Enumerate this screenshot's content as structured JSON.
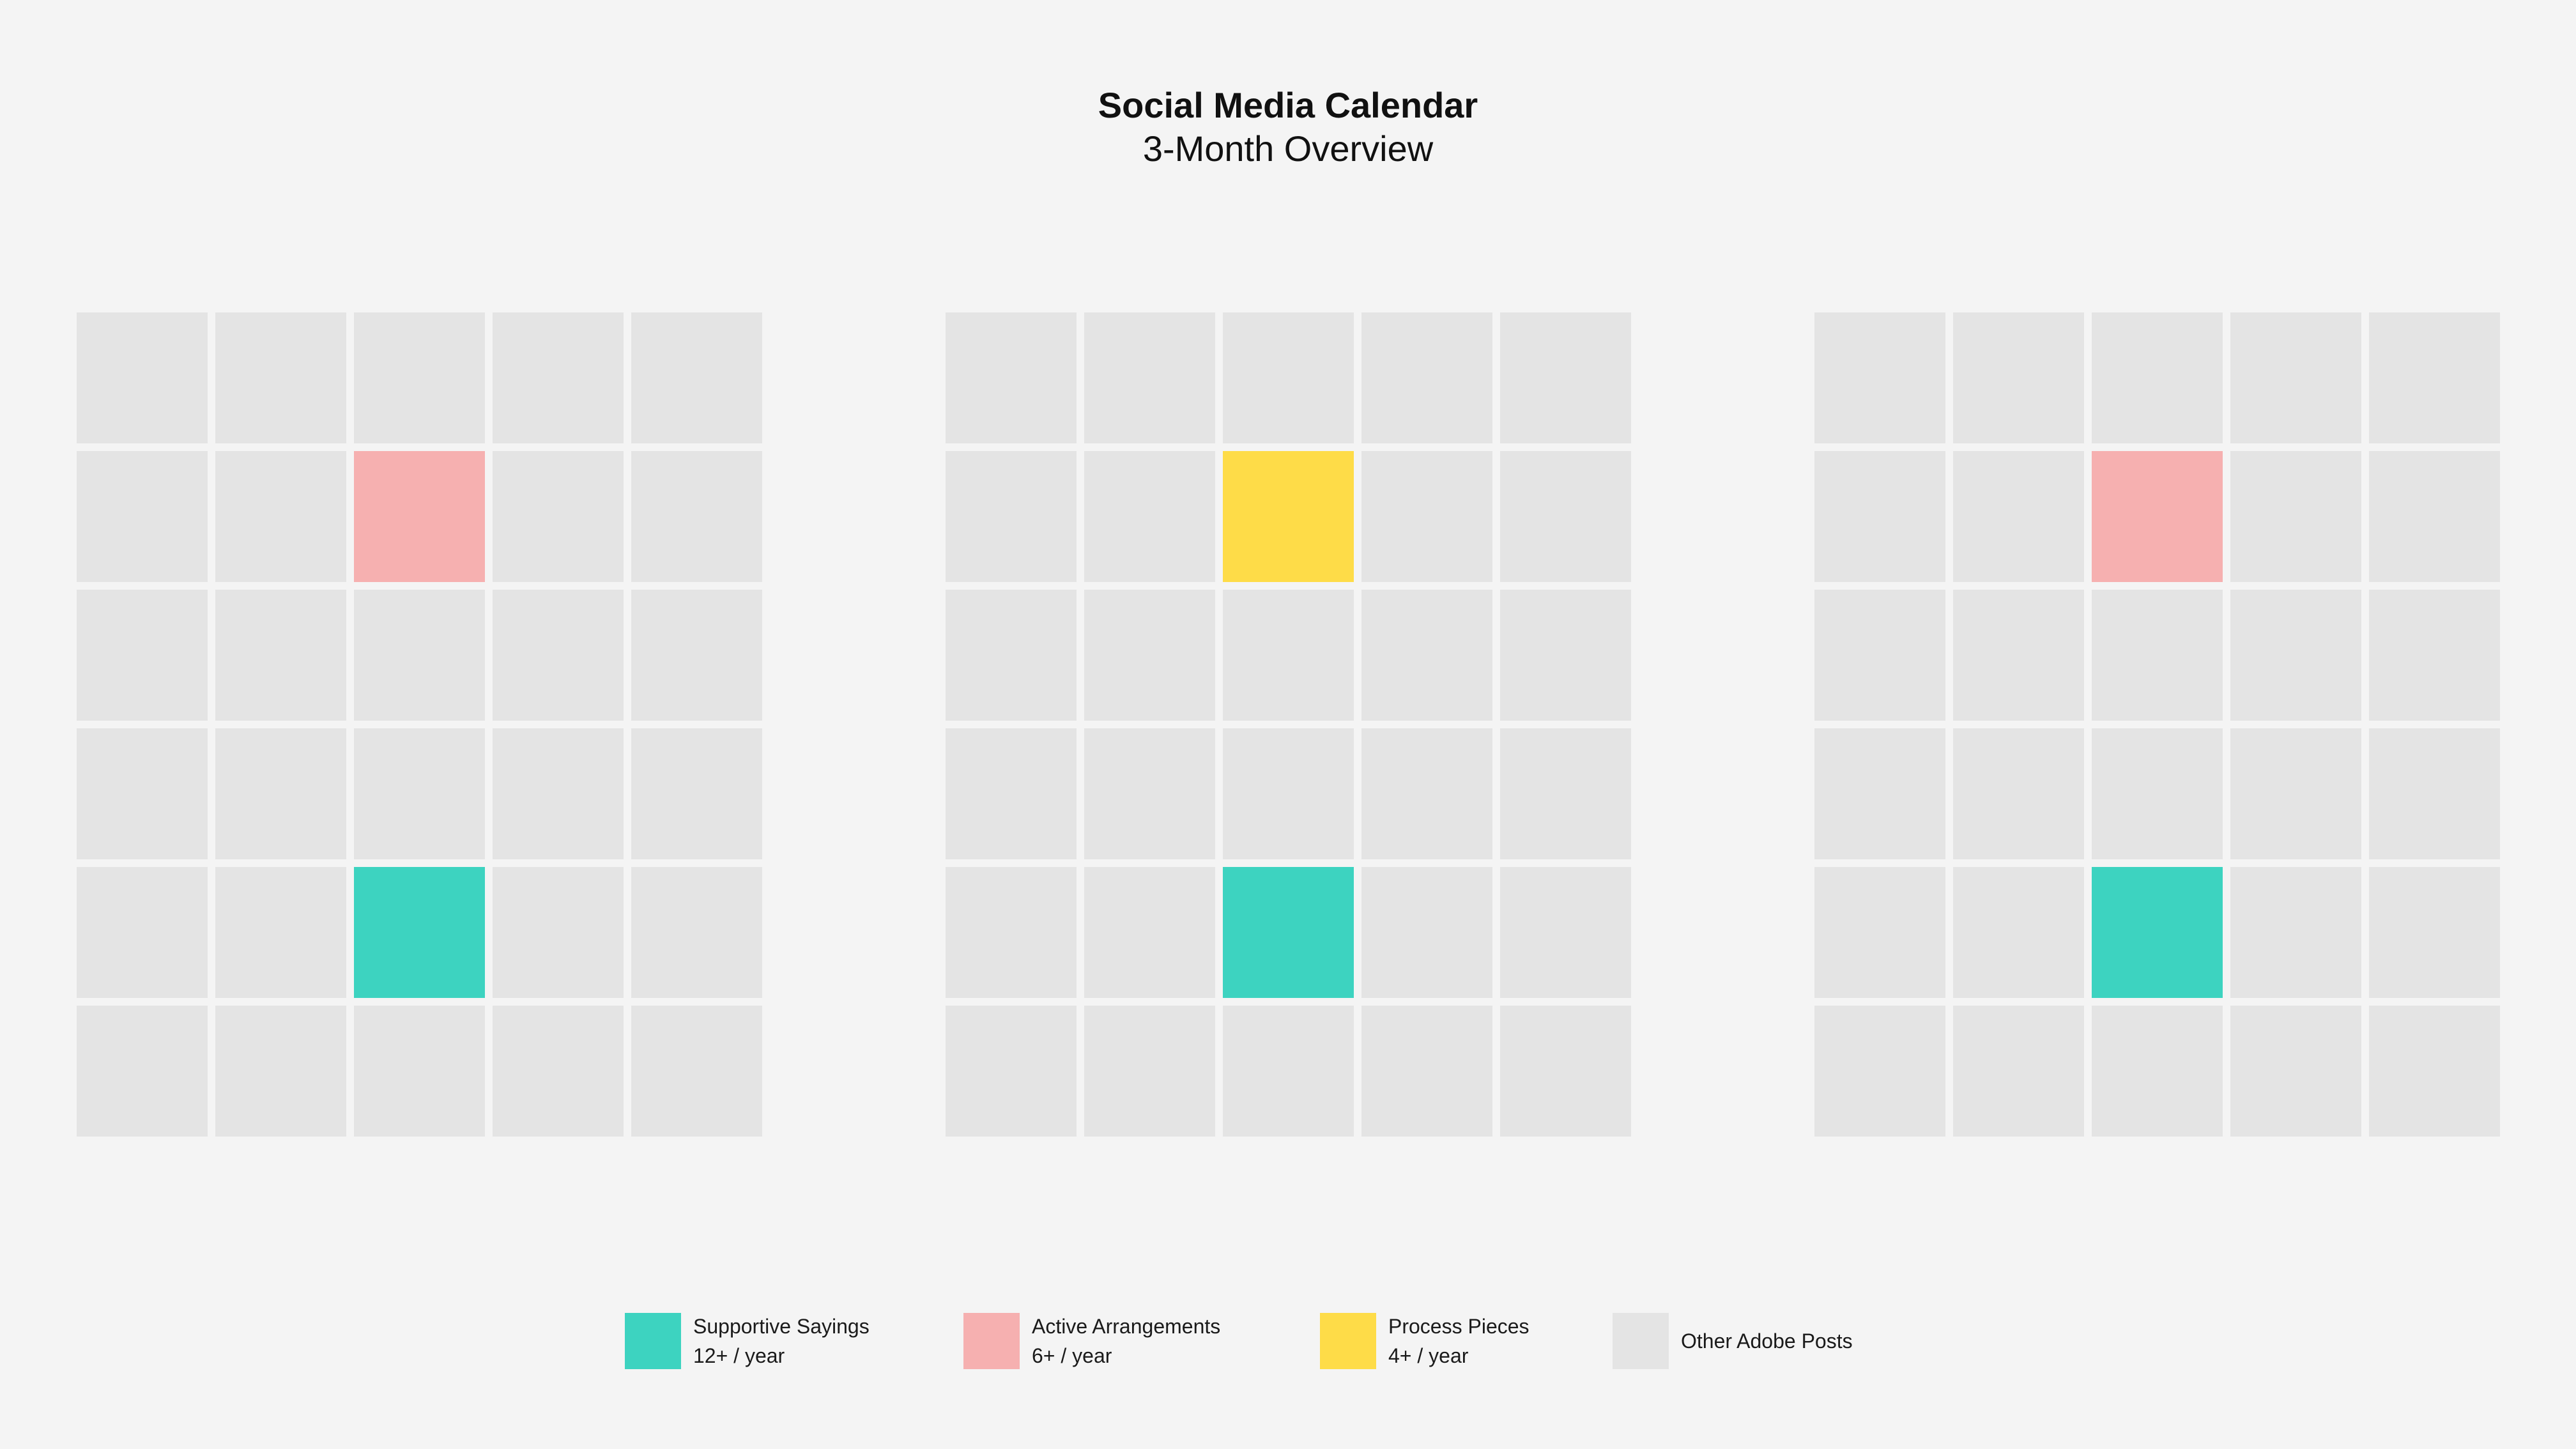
{
  "header": {
    "title": "Social Media Calendar",
    "subtitle": "3-Month Overview"
  },
  "colors": {
    "supportive_sayings": "#3dd3c0",
    "active_arrangements": "#f6b0b0",
    "process_pieces": "#fedc48",
    "other_adobe_posts": "#e4e4e4",
    "background": "#f4f4f4"
  },
  "calendar": {
    "columns": 5,
    "rows": 6,
    "months": [
      {
        "highlights": [
          {
            "row": 2,
            "col": 3,
            "category": "active_arrangements"
          },
          {
            "row": 5,
            "col": 3,
            "category": "supportive_sayings"
          }
        ]
      },
      {
        "highlights": [
          {
            "row": 2,
            "col": 3,
            "category": "process_pieces"
          },
          {
            "row": 5,
            "col": 3,
            "category": "supportive_sayings"
          }
        ]
      },
      {
        "highlights": [
          {
            "row": 2,
            "col": 3,
            "category": "active_arrangements"
          },
          {
            "row": 5,
            "col": 3,
            "category": "supportive_sayings"
          }
        ]
      }
    ]
  },
  "legend": {
    "items": [
      {
        "key": "supportive_sayings",
        "label": "Supportive Sayings",
        "frequency": "12+ / year"
      },
      {
        "key": "active_arrangements",
        "label": "Active Arrangements",
        "frequency": "6+ / year"
      },
      {
        "key": "process_pieces",
        "label": "Process Pieces",
        "frequency": "4+ / year"
      },
      {
        "key": "other_adobe_posts",
        "label": "Other Adobe Posts",
        "frequency": ""
      }
    ]
  }
}
